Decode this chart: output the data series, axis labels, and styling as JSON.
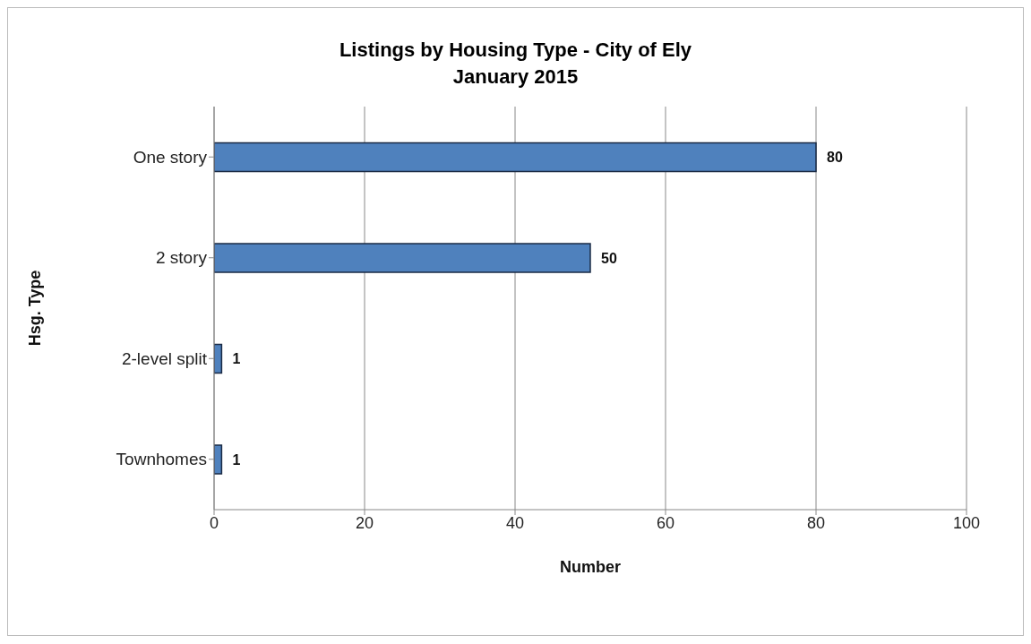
{
  "chart_data": {
    "type": "bar",
    "orientation": "horizontal",
    "title": "Listings by Housing Type - City of Ely",
    "subtitle": "January 2015",
    "xlabel": "Number",
    "ylabel": "Hsg. Type",
    "categories": [
      "One story",
      "2 story",
      "2-level split",
      "Townhomes"
    ],
    "values": [
      80,
      50,
      1,
      1
    ],
    "color": "#4f81bd",
    "xlim": [
      0,
      100
    ],
    "xticks": [
      0,
      20,
      40,
      60,
      80,
      100
    ],
    "grid": "x",
    "data_labels": true
  }
}
